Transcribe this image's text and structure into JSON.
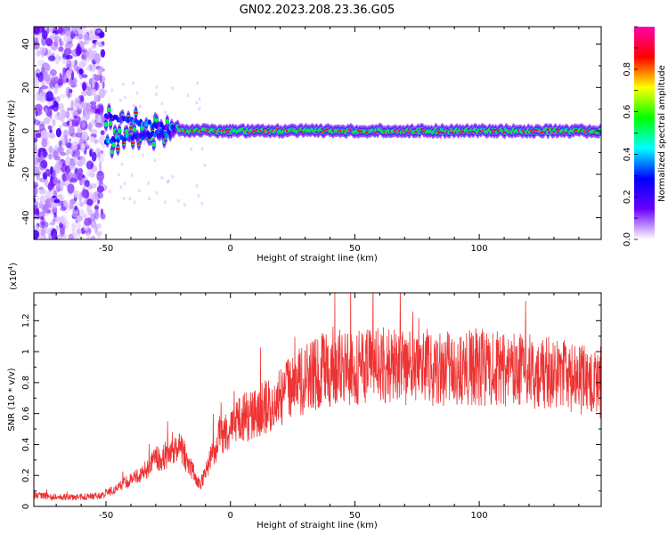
{
  "title": "GN02.2023.208.23.36.G05",
  "chart_data": [
    {
      "type": "heatmap",
      "xlabel": "Height of straight line (km)",
      "ylabel": "Frequency (Hz)",
      "xlim": [
        -79,
        149
      ],
      "ylim": [
        -50,
        48
      ],
      "x_ticks": [
        -50,
        0,
        50,
        100
      ],
      "y_ticks": [
        -40,
        -20,
        0,
        20,
        40
      ],
      "colorbar": {
        "label": "Normalized spectral amplitude",
        "range": [
          0,
          1
        ],
        "ticks": [
          "0.0",
          "0.2",
          "0.4",
          "0.6",
          "0.8"
        ],
        "colors": [
          "#ffffff",
          "#6a00ff",
          "#0000ff",
          "#00ffff",
          "#00ff00",
          "#ffff00",
          "#ff0000",
          "#ff00aa"
        ]
      },
      "features": {
        "noise_region_x": [
          -79,
          -51
        ],
        "carrier_frequency_hz": 0,
        "carrier_start_x": -50
      }
    },
    {
      "type": "line",
      "xlabel": "Height of straight line (km)",
      "ylabel": "SNR (10 * v/v)",
      "y_exponent_label": "(x10",
      "y_exponent": "4",
      "y_exponent_close": ")",
      "xlim": [
        -79,
        149
      ],
      "ylim": [
        0,
        1.38
      ],
      "x_ticks": [
        -50,
        0,
        50,
        100
      ],
      "y_ticks": [
        "0.0",
        "0.2",
        "0.4",
        "0.6",
        "0.8",
        "1.0",
        "1.2"
      ],
      "color": "#ee3333",
      "x": [
        -79,
        -70,
        -60,
        -52,
        -48,
        -45,
        -40,
        -35,
        -30,
        -25,
        -20,
        -15,
        -12,
        -8,
        -5,
        0,
        5,
        10,
        15,
        20,
        25,
        30,
        35,
        40,
        50,
        60,
        70,
        80,
        90,
        100,
        110,
        120,
        130,
        140,
        149
      ],
      "values": [
        0.07,
        0.06,
        0.06,
        0.07,
        0.1,
        0.13,
        0.17,
        0.22,
        0.3,
        0.34,
        0.38,
        0.22,
        0.14,
        0.3,
        0.43,
        0.5,
        0.57,
        0.6,
        0.65,
        0.7,
        0.77,
        0.83,
        0.87,
        0.89,
        0.9,
        0.9,
        0.9,
        0.9,
        0.9,
        0.9,
        0.88,
        0.87,
        0.86,
        0.82,
        0.78
      ]
    }
  ]
}
